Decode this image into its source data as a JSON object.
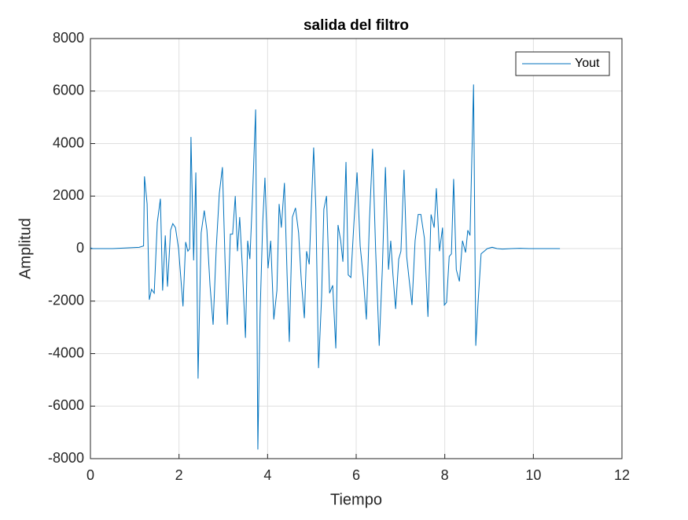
{
  "chart_data": {
    "type": "line",
    "title": "salida del filtro",
    "x_label": "Tiempo",
    "y_label": "Amplitud",
    "x": [
      0,
      0.05,
      0.5,
      1.1,
      1.2,
      1.22,
      1.28,
      1.33,
      1.38,
      1.44,
      1.51,
      1.58,
      1.63,
      1.69,
      1.74,
      1.81,
      1.86,
      1.92,
      1.99,
      2.09,
      2.15,
      2.2,
      2.24,
      2.27,
      2.33,
      2.38,
      2.43,
      2.5,
      2.57,
      2.63,
      2.7,
      2.77,
      2.84,
      2.91,
      2.98,
      3.04,
      3.09,
      3.16,
      3.21,
      3.27,
      3.32,
      3.37,
      3.43,
      3.5,
      3.55,
      3.6,
      3.66,
      3.73,
      3.78,
      3.83,
      3.89,
      3.94,
      4.01,
      4.07,
      4.14,
      4.21,
      4.26,
      4.31,
      4.38,
      4.44,
      4.49,
      4.56,
      4.63,
      4.7,
      4.76,
      4.83,
      4.88,
      4.94,
      4.99,
      5.04,
      5.09,
      5.15,
      5.22,
      5.27,
      5.33,
      5.4,
      5.47,
      5.54,
      5.59,
      5.65,
      5.7,
      5.77,
      5.82,
      5.88,
      5.95,
      6.02,
      6.09,
      6.16,
      6.23,
      6.3,
      6.37,
      6.44,
      6.52,
      6.59,
      6.66,
      6.73,
      6.78,
      6.83,
      6.89,
      6.96,
      7.01,
      7.08,
      7.14,
      7.19,
      7.26,
      7.33,
      7.4,
      7.46,
      7.54,
      7.62,
      7.69,
      7.76,
      7.81,
      7.88,
      7.95,
      7.99,
      8.04,
      8.1,
      8.15,
      8.2,
      8.26,
      8.33,
      8.4,
      8.47,
      8.52,
      8.57,
      8.65,
      8.7,
      8.75,
      8.82,
      8.89,
      8.96,
      9.07,
      9.18,
      9.3,
      9.5,
      9.7,
      9.9,
      10.1,
      10.3,
      10.6
    ],
    "series": [
      {
        "name": "Yout",
        "color": "#0072bd",
        "values": [
          30,
          0,
          0,
          50,
          100,
          2750,
          1700,
          -1950,
          -1550,
          -1700,
          1000,
          1900,
          -1600,
          500,
          -1450,
          700,
          950,
          800,
          0,
          -2200,
          250,
          -100,
          0,
          4250,
          -450,
          2900,
          -4950,
          600,
          1450,
          700,
          -1400,
          -2900,
          0,
          2100,
          3100,
          -500,
          -2900,
          550,
          550,
          2000,
          -100,
          1200,
          -700,
          -3400,
          300,
          -400,
          2000,
          5300,
          -7650,
          -2500,
          1000,
          2700,
          -750,
          300,
          -2700,
          -1600,
          1700,
          800,
          2500,
          -1000,
          -3550,
          1200,
          1550,
          600,
          -1200,
          -2650,
          -100,
          -600,
          1700,
          3850,
          1500,
          -4550,
          -1800,
          1500,
          2000,
          -1700,
          -1400,
          -3800,
          900,
          300,
          -500,
          3300,
          -1000,
          -1100,
          1000,
          2900,
          100,
          -1100,
          -2700,
          1100,
          3800,
          -100,
          -3700,
          -800,
          3100,
          -800,
          300,
          -1000,
          -2300,
          -400,
          -100,
          3000,
          -300,
          -1100,
          -2150,
          300,
          1300,
          1300,
          400,
          -2600,
          1300,
          800,
          2300,
          -100,
          800,
          -2150,
          -2050,
          -300,
          -200,
          2650,
          -800,
          -1250,
          300,
          -150,
          700,
          500,
          6250,
          -3700,
          -2100,
          -200,
          -100,
          0,
          50,
          0,
          -20,
          0,
          10,
          0,
          0,
          0,
          0
        ]
      }
    ],
    "xlim": [
      0,
      12
    ],
    "xticks": [
      0,
      2,
      4,
      6,
      8,
      10,
      12
    ],
    "ylim": [
      -8000,
      8000
    ],
    "yticks": [
      -8000,
      -6000,
      -4000,
      -2000,
      0,
      2000,
      4000,
      6000,
      8000
    ],
    "grid": true,
    "legend": "top-right"
  }
}
